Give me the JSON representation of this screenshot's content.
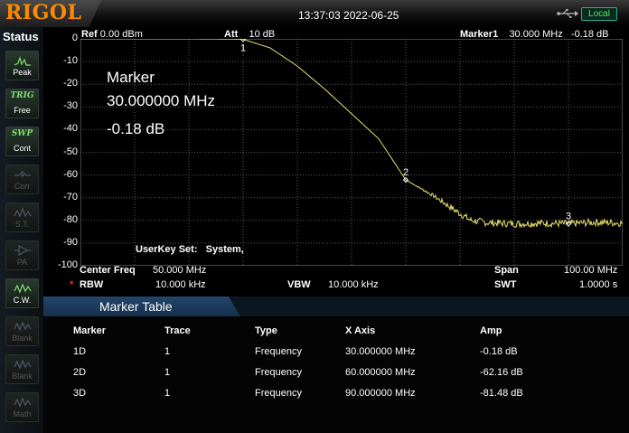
{
  "header": {
    "brand": "RIGOL",
    "datetime": "13:37:03 2022-06-25",
    "usb_icon": "usb-icon",
    "remote_mode": "Local"
  },
  "sidebar": {
    "title": "Status",
    "items": [
      {
        "label": "Peak",
        "icon": "peak-icon",
        "enabled": true
      },
      {
        "label": "Free",
        "icon_text": "TRIG",
        "enabled": true
      },
      {
        "label": "Cont",
        "icon_text": "SWP",
        "enabled": true
      },
      {
        "label": "Corr",
        "icon": "correction-icon",
        "enabled": false
      },
      {
        "label": "S.T.",
        "icon": "source-tracking-icon",
        "enabled": false
      },
      {
        "label": "PA",
        "icon": "preamp-icon",
        "enabled": false
      },
      {
        "label": "C.W.",
        "icon": "clear-write-icon",
        "enabled": true
      },
      {
        "label": "Blank",
        "icon": "blank-trace-icon",
        "enabled": false
      },
      {
        "label": "Blank",
        "icon": "blank-trace-icon",
        "enabled": false
      },
      {
        "label": "Math",
        "icon": "math-trace-icon",
        "enabled": false
      }
    ]
  },
  "display": {
    "ref_label": "Ref",
    "ref_value": "0.00 dBm",
    "att_label": "Att",
    "att_value": "10 dB",
    "marker_label": "Marker1",
    "marker_freq": "30.000 MHz",
    "marker_amp": "-0.18 dB",
    "y_ticks": [
      "0",
      "-10",
      "-20",
      "-30",
      "-40",
      "-50",
      "-60",
      "-70",
      "-80",
      "-90",
      "-100"
    ],
    "overlay": {
      "title": "Marker",
      "freq": "30.000000 MHz",
      "amp": "-0.18 dB"
    },
    "userkey_label": "UserKey Set:",
    "userkey_value": "System,",
    "marker_numbers": [
      "1",
      "2",
      "3"
    ],
    "trace_color": "#e8e06a"
  },
  "chart_data": {
    "type": "line",
    "x_unit": "MHz",
    "xlim": [
      0,
      100
    ],
    "ylim": [
      -100,
      0
    ],
    "ylabel": "",
    "series": [
      {
        "x": [
          0,
          5,
          10,
          15,
          20,
          25,
          30,
          35,
          40,
          45,
          50,
          55,
          60,
          65,
          70,
          72,
          75,
          80,
          85,
          90,
          95,
          100
        ],
        "values": [
          0,
          0,
          0,
          0,
          0,
          -0.05,
          -0.18,
          -4,
          -12,
          -22,
          -33,
          -44,
          -62.16,
          -69,
          -77,
          -80,
          -81,
          -81.5,
          -81.2,
          -81.48,
          -80.8,
          -81.2
        ]
      }
    ],
    "markers": [
      {
        "id": "1",
        "x": 30,
        "y": -0.18
      },
      {
        "id": "2",
        "x": 60,
        "y": -62.16
      },
      {
        "id": "3",
        "x": 90,
        "y": -81.48
      }
    ]
  },
  "footer": {
    "center_freq_label": "Center Freq",
    "center_freq_value": "50.000 MHz",
    "span_label": "Span",
    "span_value": "100.00 MHz",
    "rbw_mark": "*",
    "rbw_label": "RBW",
    "rbw_value": "10.000 kHz",
    "vbw_label": "VBW",
    "vbw_value": "10.000 kHz",
    "swt_label": "SWT",
    "swt_value": "1.0000 s"
  },
  "marker_table": {
    "title": "Marker Table",
    "columns": [
      "Marker",
      "Trace",
      "Type",
      "X Axis",
      "Amp"
    ],
    "rows": [
      [
        "1D",
        "1",
        "Frequency",
        "30.000000 MHz",
        "-0.18 dB"
      ],
      [
        "2D",
        "1",
        "Frequency",
        "60.000000 MHz",
        "-62.16 dB"
      ],
      [
        "3D",
        "1",
        "Frequency",
        "90.000000 MHz",
        "-81.48 dB"
      ]
    ]
  }
}
